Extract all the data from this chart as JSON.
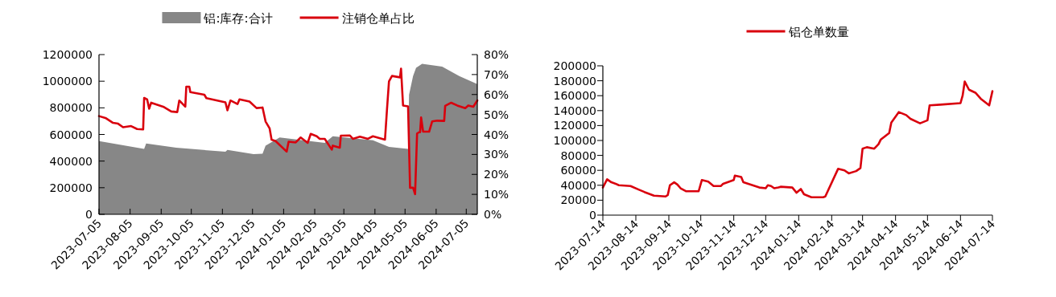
{
  "chart_data": [
    {
      "type": "line",
      "legend": "top",
      "xlim": [
        "2023-07-05",
        "2024-07-16"
      ],
      "xticks": [
        "2023-07-05",
        "2023-08-05",
        "2023-09-05",
        "2023-10-05",
        "2023-11-05",
        "2023-12-05",
        "2024-01-05",
        "2024-02-05",
        "2024-03-05",
        "2024-04-05",
        "2024-05-05",
        "2024-06-05",
        "2024-07-05"
      ],
      "ylim": [
        0,
        1200000
      ],
      "yticks": [
        0,
        200000,
        400000,
        600000,
        800000,
        1000000,
        1200000
      ],
      "y2lim": [
        0,
        80
      ],
      "y2ticks": [
        {
          "value": 0,
          "label": "0%"
        },
        {
          "value": 10,
          "label": "10%"
        },
        {
          "value": 20,
          "label": "20%"
        },
        {
          "value": 30,
          "label": "30%"
        },
        {
          "value": 40,
          "label": "40%"
        },
        {
          "value": 50,
          "label": "50%"
        },
        {
          "value": 60,
          "label": "60%"
        },
        {
          "value": 70,
          "label": "70%"
        },
        {
          "value": 80,
          "label": "80%"
        }
      ],
      "series": [
        {
          "name": "铝:库存:合计",
          "type": "area",
          "color": "#878787",
          "x": [
            "2023-07-05",
            "2023-08-19",
            "2023-08-21",
            "2023-09-20",
            "2023-11-08",
            "2023-11-10",
            "2023-12-06",
            "2023-12-15",
            "2023-12-18",
            "2024-01-01",
            "2024-02-15",
            "2024-02-23",
            "2024-04-03",
            "2024-04-19",
            "2024-05-08",
            "2024-05-09",
            "2024-05-13",
            "2024-05-16",
            "2024-05-22",
            "2024-06-11",
            "2024-06-28",
            "2024-07-16"
          ],
          "values": [
            550000,
            492000,
            532000,
            500000,
            470000,
            484000,
            452000,
            456000,
            516000,
            577000,
            537000,
            587000,
            557000,
            506000,
            492000,
            898000,
            1039000,
            1100000,
            1130000,
            1110000,
            1039000,
            979000
          ]
        },
        {
          "name": "注销仓单占比",
          "type": "line",
          "axis": "y2",
          "color": "#d9000d",
          "x": [
            "2023-07-05",
            "2023-07-12",
            "2023-07-19",
            "2023-07-24",
            "2023-07-29",
            "2023-08-06",
            "2023-08-12",
            "2023-08-18",
            "2023-08-19",
            "2023-08-22",
            "2023-08-24",
            "2023-08-26",
            "2023-09-07",
            "2023-09-15",
            "2023-09-21",
            "2023-09-23",
            "2023-09-29",
            "2023-09-30",
            "2023-10-03",
            "2023-10-04",
            "2023-10-18",
            "2023-10-20",
            "2023-11-08",
            "2023-11-10",
            "2023-11-13",
            "2023-11-20",
            "2023-11-22",
            "2023-12-02",
            "2023-12-09",
            "2023-12-15",
            "2023-12-18",
            "2023-12-22",
            "2023-12-24",
            "2023-12-28",
            "2024-01-08",
            "2024-01-10",
            "2024-01-17",
            "2024-01-22",
            "2024-01-29",
            "2024-02-01",
            "2024-02-07",
            "2024-02-10",
            "2024-02-15",
            "2024-02-22",
            "2024-02-23",
            "2024-03-01",
            "2024-03-02",
            "2024-03-11",
            "2024-03-14",
            "2024-03-21",
            "2024-03-29",
            "2024-04-03",
            "2024-04-15",
            "2024-04-17",
            "2024-04-19",
            "2024-04-22",
            "2024-04-30",
            "2024-05-01",
            "2024-05-03",
            "2024-05-08",
            "2024-05-10",
            "2024-05-13",
            "2024-05-15",
            "2024-05-17",
            "2024-05-19",
            "2024-05-20",
            "2024-05-21",
            "2024-05-23",
            "2024-05-29",
            "2024-06-01",
            "2024-06-06",
            "2024-06-13",
            "2024-06-14",
            "2024-06-20",
            "2024-06-26",
            "2024-07-04",
            "2024-07-07",
            "2024-07-12",
            "2024-07-16"
          ],
          "values": [
            49.2,
            48.1,
            45.8,
            45.4,
            43.6,
            44.2,
            42.7,
            42.5,
            58.3,
            57.5,
            52.9,
            55.9,
            53.9,
            51.5,
            51.2,
            57.0,
            53.9,
            63.9,
            63.9,
            61.2,
            59.9,
            58.2,
            56.1,
            52.1,
            57.0,
            55.2,
            57.6,
            56.5,
            53.2,
            53.5,
            46.5,
            43.1,
            37.4,
            36.7,
            31.4,
            36.4,
            36.0,
            38.5,
            35.8,
            40.3,
            39.1,
            37.8,
            37.8,
            32.4,
            34.4,
            33.4,
            39.4,
            39.5,
            37.8,
            38.9,
            37.8,
            39.1,
            37.4,
            52.5,
            66.6,
            69.3,
            68.6,
            72.9,
            54.5,
            54.1,
            13.3,
            13.3,
            10.1,
            40.5,
            41.1,
            41.1,
            48.5,
            41.4,
            41.4,
            46.5,
            46.9,
            46.8,
            54.3,
            55.9,
            54.5,
            53.2,
            54.5,
            53.9,
            57.0
          ]
        }
      ]
    },
    {
      "type": "line",
      "legend": "top",
      "xlim": [
        "2023-07-14",
        "2024-07-14"
      ],
      "xticks": [
        "2023-07-14",
        "2023-08-14",
        "2023-09-14",
        "2023-10-14",
        "2023-11-14",
        "2023-12-14",
        "2024-01-14",
        "2024-02-14",
        "2024-03-14",
        "2024-04-14",
        "2024-05-14",
        "2024-06-14",
        "2024-07-14"
      ],
      "ylim": [
        0,
        200000
      ],
      "yticks": [
        0,
        20000,
        40000,
        60000,
        80000,
        100000,
        120000,
        140000,
        160000,
        180000,
        200000
      ],
      "series": [
        {
          "name": "铝仓单数量",
          "type": "line",
          "color": "#d9000d",
          "x": [
            "2023-07-14",
            "2023-07-18",
            "2023-07-22",
            "2023-07-26",
            "2023-07-29",
            "2023-08-09",
            "2023-08-17",
            "2023-08-22",
            "2023-08-31",
            "2023-09-11",
            "2023-09-13",
            "2023-09-15",
            "2023-09-19",
            "2023-09-22",
            "2023-09-25",
            "2023-09-30",
            "2023-10-12",
            "2023-10-15",
            "2023-10-21",
            "2023-10-26",
            "2023-11-02",
            "2023-11-04",
            "2023-11-14",
            "2023-11-15",
            "2023-11-21",
            "2023-11-23",
            "2023-12-08",
            "2023-12-14",
            "2023-12-16",
            "2023-12-19",
            "2023-12-22",
            "2023-12-26",
            "2023-12-28",
            "2024-01-08",
            "2024-01-12",
            "2024-01-16",
            "2024-01-19",
            "2024-01-26",
            "2024-02-06",
            "2024-02-08",
            "2024-02-20",
            "2024-02-26",
            "2024-03-01",
            "2024-03-08",
            "2024-03-12",
            "2024-03-14",
            "2024-03-18",
            "2024-03-25",
            "2024-03-29",
            "2024-03-31",
            "2024-04-08",
            "2024-04-10",
            "2024-04-17",
            "2024-04-24",
            "2024-04-28",
            "2024-05-07",
            "2024-05-14",
            "2024-05-16",
            "2024-05-26",
            "2024-06-14",
            "2024-06-16",
            "2024-06-18",
            "2024-06-22",
            "2024-06-28",
            "2024-07-03",
            "2024-07-11",
            "2024-07-14"
          ],
          "values": [
            37000,
            48000,
            44000,
            42000,
            40000,
            39000,
            34000,
            31000,
            26000,
            25000,
            27000,
            40000,
            44000,
            41000,
            36000,
            32000,
            32000,
            47000,
            45000,
            39000,
            39000,
            42000,
            47000,
            53000,
            51000,
            44000,
            37000,
            36000,
            40000,
            39000,
            36000,
            37000,
            38000,
            37000,
            30000,
            35000,
            28000,
            24000,
            24000,
            25000,
            62000,
            60000,
            56000,
            59000,
            63000,
            89000,
            91000,
            89000,
            95000,
            101000,
            110000,
            124000,
            138000,
            134000,
            129000,
            123000,
            127000,
            147000,
            148000,
            150000,
            160000,
            179000,
            168000,
            164000,
            156000,
            147000,
            166000
          ]
        }
      ]
    }
  ]
}
